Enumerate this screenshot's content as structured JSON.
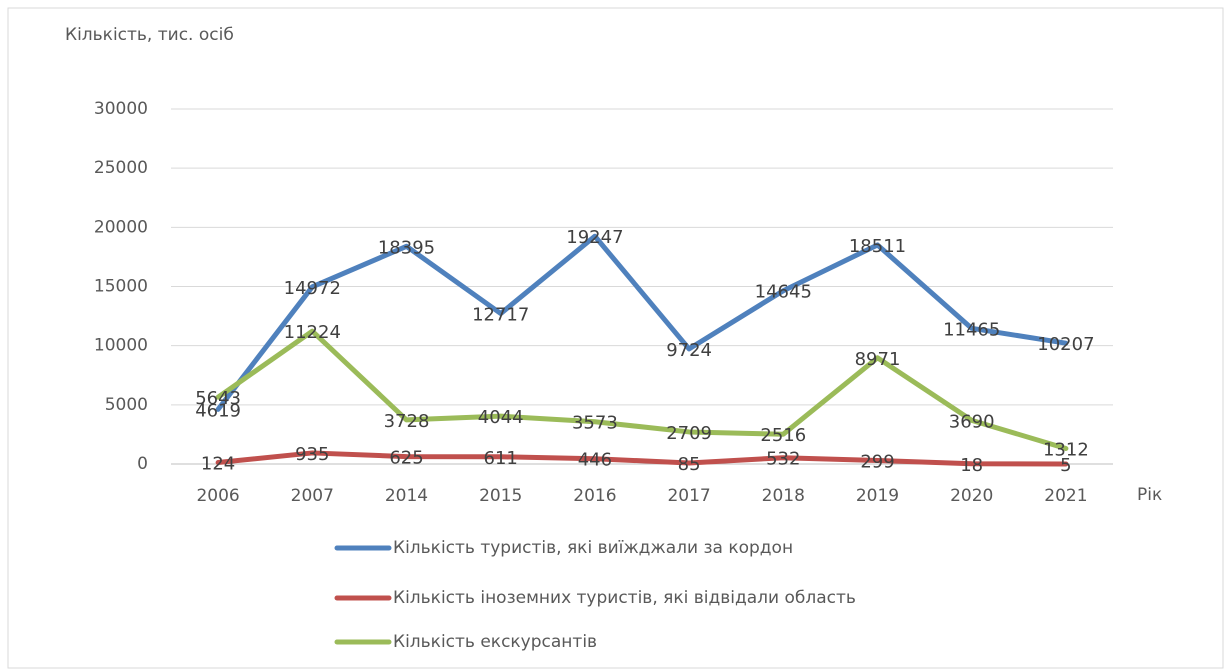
{
  "chart_data": {
    "type": "line",
    "y_label": "Кількість, тис. осіб",
    "x_label": "Рік",
    "categories": [
      "2006",
      "2007",
      "2014",
      "2015",
      "2016",
      "2017",
      "2018",
      "2019",
      "2020",
      "2021"
    ],
    "series": [
      {
        "name": "Кількість туристів, які виїжджали за кордон",
        "color": "#4f81bd",
        "values": [
          4619,
          14972,
          18395,
          12717,
          19247,
          9724,
          14645,
          18511,
          11465,
          10207
        ]
      },
      {
        "name": "Кількість іноземних туристів, які відвідали область",
        "color": "#c0504d",
        "values": [
          124,
          935,
          625,
          611,
          446,
          85,
          532,
          299,
          18,
          5
        ]
      },
      {
        "name": "Кількість екскурсантів",
        "color": "#9bbb59",
        "values": [
          5643,
          11224,
          3728,
          4044,
          3573,
          2709,
          2516,
          8971,
          3690,
          1312
        ]
      }
    ],
    "ylim": [
      0,
      30000
    ],
    "yticks": [
      0,
      5000,
      10000,
      15000,
      20000,
      25000,
      30000
    ],
    "grid": true,
    "legend": "bottom"
  }
}
